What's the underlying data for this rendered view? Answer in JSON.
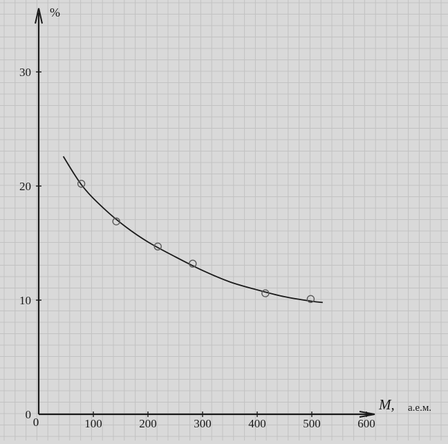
{
  "chart_data": {
    "type": "scatter",
    "title": "",
    "xlabel": "M,",
    "xlabel_unit": "а.е.м.",
    "ylabel": "%",
    "xlim": [
      0,
      600
    ],
    "ylim": [
      0,
      35
    ],
    "x_ticks": [
      0,
      100,
      200,
      300,
      400,
      500,
      600
    ],
    "x_tick_labels": [
      "0",
      "100",
      "200",
      "300",
      "400",
      "500",
      "600"
    ],
    "y_ticks": [
      0,
      10,
      20,
      30
    ],
    "y_tick_labels": [
      "0",
      "10",
      "20",
      "30"
    ],
    "grid": true,
    "series": [
      {
        "points": [
          {
            "x": 78,
            "y": 20.2
          },
          {
            "x": 142,
            "y": 16.9
          },
          {
            "x": 218,
            "y": 14.7
          },
          {
            "x": 282,
            "y": 13.2
          },
          {
            "x": 415,
            "y": 10.6
          },
          {
            "x": 498,
            "y": 10.1
          }
        ]
      }
    ],
    "fit_curve": [
      {
        "x": 45,
        "y": 22.6
      },
      {
        "x": 80,
        "y": 20.0
      },
      {
        "x": 120,
        "y": 18.0
      },
      {
        "x": 160,
        "y": 16.4
      },
      {
        "x": 200,
        "y": 15.1
      },
      {
        "x": 250,
        "y": 13.8
      },
      {
        "x": 300,
        "y": 12.6
      },
      {
        "x": 350,
        "y": 11.6
      },
      {
        "x": 400,
        "y": 10.9
      },
      {
        "x": 450,
        "y": 10.3
      },
      {
        "x": 500,
        "y": 9.9
      },
      {
        "x": 520,
        "y": 9.8
      }
    ],
    "colors": {
      "paper": "#d9d9d9",
      "grid": "#c2c2c2",
      "ink": "#1a1a1a"
    }
  }
}
